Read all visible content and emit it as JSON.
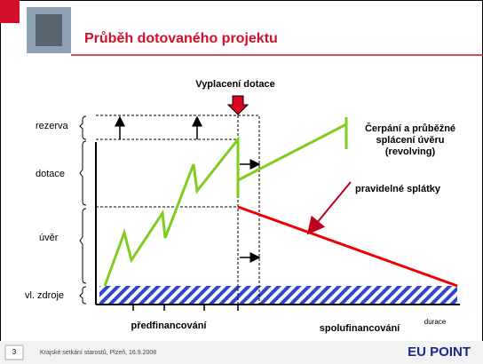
{
  "header": {
    "title": "Průběh dotovaného projektu"
  },
  "diagram": {
    "event_label": "Vyplacení dotace",
    "levels": [
      "rezerva",
      "dotace",
      "úvěr",
      "vl. zdroje"
    ],
    "revolving_label": [
      "Čerpání a průběžné",
      "splácení úvěru",
      "(revolving)"
    ],
    "repayment_label": "pravidelné splátky",
    "phases": [
      "předfinancování",
      "spolufinancování"
    ],
    "x_axis_label": "durace"
  },
  "footer": {
    "page_number": "3",
    "text": "Krajské setkání starostů, Plzeň, 16.9.2008",
    "logo": "EU POINT"
  }
}
